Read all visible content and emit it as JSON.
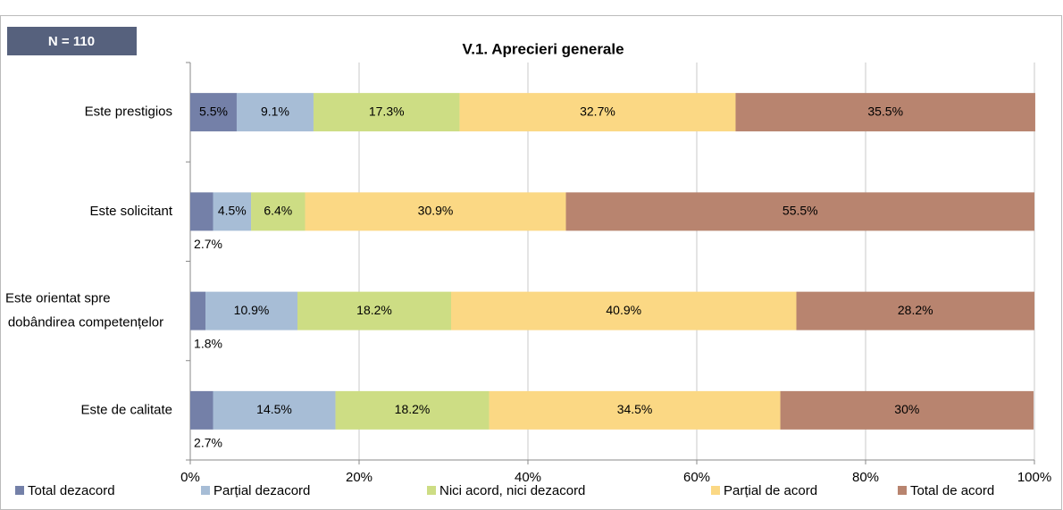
{
  "chart_data": {
    "type": "stacked-bar-horizontal",
    "badge": "N = 110",
    "title": "V.1. Aprecieri generale",
    "categories": [
      "Este prestigios",
      "Este solicitant",
      "Este orientat spre dobândirea competențelor",
      "Este de calitate"
    ],
    "series": [
      {
        "name": "Total dezacord",
        "color": "#7480a8",
        "values": [
          5.5,
          2.7,
          1.8,
          2.7
        ],
        "value_labels": [
          "5.5%",
          "2.7%",
          "1.8%",
          "2.7%"
        ]
      },
      {
        "name": "Parțial dezacord",
        "color": "#a7bdd6",
        "values": [
          9.1,
          4.5,
          10.9,
          14.5
        ],
        "value_labels": [
          "9.1%",
          "4.5%",
          "10.9%",
          "14.5%"
        ]
      },
      {
        "name": "Nici acord, nici dezacord",
        "color": "#cddd84",
        "values": [
          17.3,
          6.4,
          18.2,
          18.2
        ],
        "value_labels": [
          "17.3%",
          "6.4%",
          "18.2%",
          "18.2%"
        ]
      },
      {
        "name": "Parțial de acord",
        "color": "#fbd884",
        "values": [
          32.7,
          30.9,
          40.9,
          34.5
        ],
        "value_labels": [
          "32.7%",
          "30.9%",
          "40.9%",
          "34.5%"
        ]
      },
      {
        "name": "Total de acord",
        "color": "#b8846f",
        "values": [
          35.5,
          55.5,
          28.2,
          30
        ],
        "value_labels": [
          "35.5%",
          "55.5%",
          "28.2%",
          "30%"
        ]
      }
    ],
    "xlim": [
      0,
      100
    ],
    "xticks": [
      {
        "value": 0,
        "label": "0%"
      },
      {
        "value": 20,
        "label": "20%"
      },
      {
        "value": 40,
        "label": "40%"
      },
      {
        "value": 60,
        "label": "60%"
      },
      {
        "value": 80,
        "label": "80%"
      },
      {
        "value": 100,
        "label": "100%"
      }
    ],
    "grid": true,
    "legend": "bottom"
  }
}
